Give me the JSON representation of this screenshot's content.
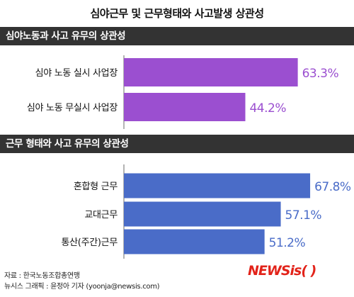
{
  "title": "심야근무 및 근무형태와 사고발생 상관성",
  "colors": {
    "purple": "#9b4fd0",
    "blue": "#4a6cc8",
    "header_bg": "#333333",
    "axis": "#9a9a9a",
    "logo_red": "#e2231a"
  },
  "chart_data": [
    {
      "type": "bar",
      "orientation": "horizontal",
      "title": "심야노동과 사고 유무의 상관성",
      "categories": [
        "심야 노동 실시 사업장",
        "심야 노동 무실시 사업장"
      ],
      "values": [
        63.3,
        44.2
      ],
      "value_labels": [
        "63.3%",
        "44.2%"
      ],
      "unit": "%",
      "xlim": [
        0,
        100
      ],
      "color": "#9b4fd0"
    },
    {
      "type": "bar",
      "orientation": "horizontal",
      "title": "근무 형태와 사고 유무의 상관성",
      "categories": [
        "혼합형 근무",
        "교대근무",
        "통산(주간)근무"
      ],
      "values": [
        67.8,
        57.1,
        51.2
      ],
      "value_labels": [
        "67.8%",
        "57.1%",
        "51.2%"
      ],
      "unit": "%",
      "xlim": [
        0,
        100
      ],
      "color": "#4a6cc8"
    }
  ],
  "footer": {
    "source": "자료 : 한국노동조합총연맹",
    "credit": "뉴시스 그래픽 : 윤정아 기자 (yoonja@newsis.com)"
  },
  "logo": {
    "news": "NEWS",
    "is": "is",
    "paren": "( )"
  }
}
